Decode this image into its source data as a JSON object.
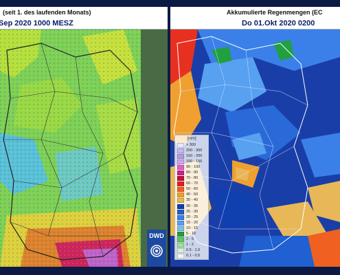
{
  "left_panel": {
    "title_line1": "(seit 1. des laufenden Monats)",
    "title_line2": "Sep 2020 1000 MESZ",
    "logo_text": "DWD"
  },
  "right_panel": {
    "title_line1": "Akkumulierte Regenmengen (EC",
    "title_line2": "Do 01.Okt 2020 0200",
    "legend": {
      "title": "[mm]",
      "items": [
        {
          "label": "> 300",
          "color": "#e8e8ff"
        },
        {
          "label": "200 - 300",
          "color": "#c8b8f0"
        },
        {
          "label": "150 - 200",
          "color": "#b49ae0"
        },
        {
          "label": "100 - 150",
          "color": "#d0a8e8"
        },
        {
          "label": "90 - 100",
          "color": "#e060d0"
        },
        {
          "label": "80 - 90",
          "color": "#d02090"
        },
        {
          "label": "70 - 80",
          "color": "#c01040"
        },
        {
          "label": "60 - 70",
          "color": "#e02020"
        },
        {
          "label": "50 - 60",
          "color": "#f06020"
        },
        {
          "label": "40 - 50",
          "color": "#f0a030"
        },
        {
          "label": "35 - 40",
          "color": "#e8b858"
        },
        {
          "label": "30 - 35",
          "color": "#1040b0"
        },
        {
          "label": "25 - 30",
          "color": "#2060d0"
        },
        {
          "label": "20 - 25",
          "color": "#3a80e8"
        },
        {
          "label": "15 - 20",
          "color": "#58a0f0"
        },
        {
          "label": "10 - 15",
          "color": "#78c0f8"
        },
        {
          "label": "5 - 10",
          "color": "#20a040"
        },
        {
          "label": "2 - 5",
          "color": "#60c860"
        },
        {
          "label": "1 - 2",
          "color": "#a0e0a0"
        },
        {
          "label": "0.5 - 1.0",
          "color": "#d8f0d8"
        },
        {
          "label": "0.1 - 0.5",
          "color": "#f0f8f0"
        }
      ]
    }
  }
}
